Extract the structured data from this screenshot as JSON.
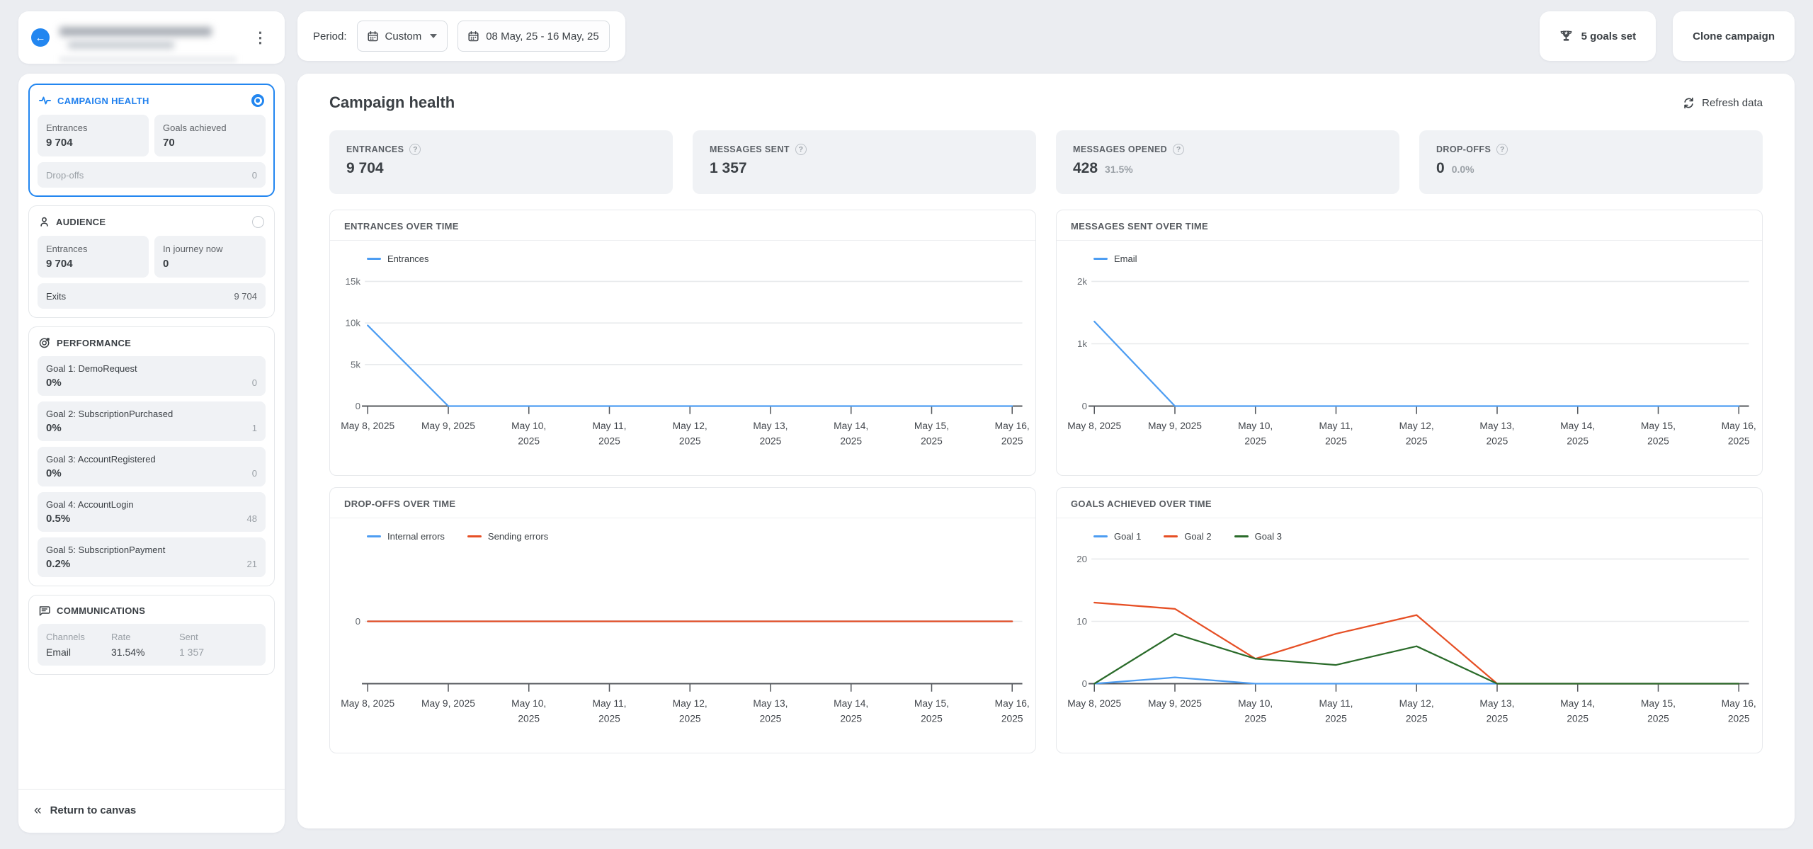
{
  "colors": {
    "accent": "#2286f0",
    "chart_blue": "#4d9df2",
    "chart_red": "#e64f25",
    "chart_green": "#2a6b2a"
  },
  "topbar": {
    "period_label": "Period:",
    "period_value": "Custom",
    "date_range": "08 May, 25 - 16 May, 25",
    "goals_set": "5 goals set",
    "clone": "Clone campaign"
  },
  "sidebar": {
    "health": {
      "title": "CAMPAIGN HEALTH",
      "entrances_label": "Entrances",
      "entrances": "9 704",
      "goals_label": "Goals achieved",
      "goals": "70",
      "dropoffs_label": "Drop-offs",
      "dropoffs": "0"
    },
    "audience": {
      "title": "AUDIENCE",
      "entrances_label": "Entrances",
      "entrances": "9 704",
      "journey_label": "In journey now",
      "journey": "0",
      "exits_label": "Exits",
      "exits": "9 704"
    },
    "performance": {
      "title": "PERFORMANCE",
      "goals": [
        {
          "label": "Goal 1: DemoRequest",
          "pct": "0%",
          "count": "0"
        },
        {
          "label": "Goal 2: SubscriptionPurchased",
          "pct": "0%",
          "count": "1"
        },
        {
          "label": "Goal 3: AccountRegistered",
          "pct": "0%",
          "count": "0"
        },
        {
          "label": "Goal 4: AccountLogin",
          "pct": "0.5%",
          "count": "48"
        },
        {
          "label": "Goal 5: SubscriptionPayment",
          "pct": "0.2%",
          "count": "21"
        }
      ]
    },
    "communications": {
      "title": "COMMUNICATIONS",
      "col_channels": "Channels",
      "col_rate": "Rate",
      "col_sent": "Sent",
      "channel": "Email",
      "rate": "31.54%",
      "sent": "1 357"
    },
    "return_label": "Return to canvas"
  },
  "main": {
    "title": "Campaign health",
    "refresh": "Refresh data",
    "stats": [
      {
        "label": "ENTRANCES",
        "value": "9 704",
        "sub": ""
      },
      {
        "label": "MESSAGES SENT",
        "value": "1 357",
        "sub": ""
      },
      {
        "label": "MESSAGES OPENED",
        "value": "428",
        "sub": "31.5%"
      },
      {
        "label": "DROP-OFFS",
        "value": "0",
        "sub": "0.0%"
      }
    ]
  },
  "chart_data": [
    {
      "type": "line",
      "title": "ENTRANCES OVER TIME",
      "ylim": [
        0,
        15000
      ],
      "y_ticks": [
        {
          "v": 0,
          "label": "0"
        },
        {
          "v": 5000,
          "label": "5k"
        },
        {
          "v": 10000,
          "label": "10k"
        },
        {
          "v": 15000,
          "label": "15k"
        }
      ],
      "categories": [
        "May 8, 2025",
        "May 9, 2025",
        "May 10, 2025",
        "May 11, 2025",
        "May 12, 2025",
        "May 13, 2025",
        "May 14, 2025",
        "May 15, 2025",
        "May 16, 2025"
      ],
      "tick_lines": [
        [
          "May 8, 2025"
        ],
        [
          "May 9, 2025"
        ],
        [
          "May 10,",
          "2025"
        ],
        [
          "May 11,",
          "2025"
        ],
        [
          "May 12,",
          "2025"
        ],
        [
          "May 13,",
          "2025"
        ],
        [
          "May 14,",
          "2025"
        ],
        [
          "May 15,",
          "2025"
        ],
        [
          "May 16,",
          "2025"
        ]
      ],
      "series": [
        {
          "name": "Entrances",
          "color": "#4d9df2",
          "values": [
            9704,
            0,
            0,
            0,
            0,
            0,
            0,
            0,
            0
          ]
        }
      ]
    },
    {
      "type": "line",
      "title": "MESSAGES SENT OVER TIME",
      "ylim": [
        0,
        2000
      ],
      "y_ticks": [
        {
          "v": 0,
          "label": "0"
        },
        {
          "v": 1000,
          "label": "1k"
        },
        {
          "v": 2000,
          "label": "2k"
        }
      ],
      "categories": [
        "May 8, 2025",
        "May 9, 2025",
        "May 10, 2025",
        "May 11, 2025",
        "May 12, 2025",
        "May 13, 2025",
        "May 14, 2025",
        "May 15, 2025",
        "May 16, 2025"
      ],
      "tick_lines": [
        [
          "May 8, 2025"
        ],
        [
          "May 9, 2025"
        ],
        [
          "May 10,",
          "2025"
        ],
        [
          "May 11,",
          "2025"
        ],
        [
          "May 12,",
          "2025"
        ],
        [
          "May 13,",
          "2025"
        ],
        [
          "May 14,",
          "2025"
        ],
        [
          "May 15,",
          "2025"
        ],
        [
          "May 16,",
          "2025"
        ]
      ],
      "series": [
        {
          "name": "Email",
          "color": "#4d9df2",
          "values": [
            1357,
            0,
            0,
            0,
            0,
            0,
            0,
            0,
            0
          ]
        }
      ]
    },
    {
      "type": "line",
      "title": "DROP-OFFS OVER TIME",
      "ylim": [
        -1,
        1
      ],
      "y_ticks": [
        {
          "v": 0,
          "label": "0"
        }
      ],
      "categories": [
        "May 8, 2025",
        "May 9, 2025",
        "May 10, 2025",
        "May 11, 2025",
        "May 12, 2025",
        "May 13, 2025",
        "May 14, 2025",
        "May 15, 2025",
        "May 16, 2025"
      ],
      "tick_lines": [
        [
          "May 8, 2025"
        ],
        [
          "May 9, 2025"
        ],
        [
          "May 10,",
          "2025"
        ],
        [
          "May 11,",
          "2025"
        ],
        [
          "May 12,",
          "2025"
        ],
        [
          "May 13,",
          "2025"
        ],
        [
          "May 14,",
          "2025"
        ],
        [
          "May 15,",
          "2025"
        ],
        [
          "May 16,",
          "2025"
        ]
      ],
      "series": [
        {
          "name": "Internal errors",
          "color": "#4d9df2",
          "values": [
            0,
            0,
            0,
            0,
            0,
            0,
            0,
            0,
            0
          ]
        },
        {
          "name": "Sending errors",
          "color": "#e64f25",
          "values": [
            0,
            0,
            0,
            0,
            0,
            0,
            0,
            0,
            0
          ]
        }
      ]
    },
    {
      "type": "line",
      "title": "GOALS ACHIEVED OVER TIME",
      "ylim": [
        0,
        20
      ],
      "y_ticks": [
        {
          "v": 0,
          "label": "0"
        },
        {
          "v": 10,
          "label": "10"
        },
        {
          "v": 20,
          "label": "20"
        }
      ],
      "categories": [
        "May 8, 2025",
        "May 9, 2025",
        "May 10, 2025",
        "May 11, 2025",
        "May 12, 2025",
        "May 13, 2025",
        "May 14, 2025",
        "May 15, 2025",
        "May 16, 2025"
      ],
      "tick_lines": [
        [
          "May 8, 2025"
        ],
        [
          "May 9, 2025"
        ],
        [
          "May 10,",
          "2025"
        ],
        [
          "May 11,",
          "2025"
        ],
        [
          "May 12,",
          "2025"
        ],
        [
          "May 13,",
          "2025"
        ],
        [
          "May 14,",
          "2025"
        ],
        [
          "May 15,",
          "2025"
        ],
        [
          "May 16,",
          "2025"
        ]
      ],
      "series": [
        {
          "name": "Goal 1",
          "color": "#4d9df2",
          "values": [
            0,
            1,
            0,
            0,
            0,
            0,
            0,
            0,
            0
          ]
        },
        {
          "name": "Goal 2",
          "color": "#e64f25",
          "values": [
            13,
            12,
            4,
            8,
            11,
            0,
            0,
            0,
            0
          ]
        },
        {
          "name": "Goal 3",
          "color": "#2a6b2a",
          "values": [
            0,
            8,
            4,
            3,
            6,
            0,
            0,
            0,
            0
          ]
        }
      ]
    }
  ]
}
